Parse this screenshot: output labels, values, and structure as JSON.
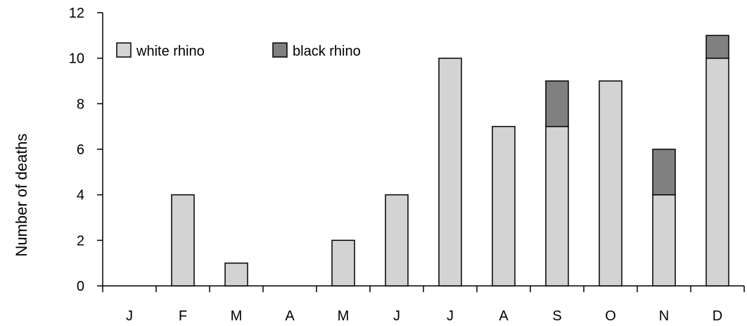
{
  "chart_data": {
    "type": "bar",
    "stacked": true,
    "categories": [
      "J",
      "F",
      "M",
      "A",
      "M",
      "J",
      "J",
      "A",
      "S",
      "O",
      "N",
      "D"
    ],
    "series": [
      {
        "name": "white rhino",
        "color": "#d3d3d3",
        "values": [
          0,
          4,
          1,
          0,
          2,
          4,
          10,
          7,
          7,
          9,
          4,
          10
        ]
      },
      {
        "name": "black rhino",
        "color": "#808080",
        "values": [
          0,
          0,
          0,
          0,
          0,
          0,
          0,
          0,
          2,
          0,
          2,
          1
        ]
      }
    ],
    "ylabel": "Number of deaths",
    "ylim": [
      0,
      12
    ],
    "yticks": [
      0,
      2,
      4,
      6,
      8,
      10,
      12
    ],
    "legend_position": "top-left",
    "grid": false
  }
}
